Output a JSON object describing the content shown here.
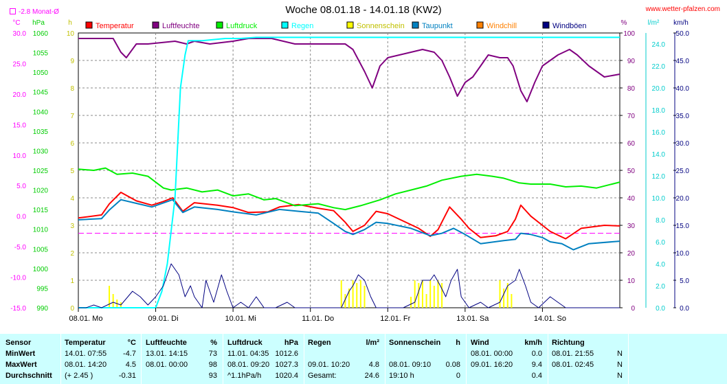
{
  "page": {
    "title": "Woche 08.01.18 - 14.01.18 (KW2)",
    "site": "www.wetter-pfalzen.com",
    "monat_label": "-2.8 Monat-Ø"
  },
  "colors": {
    "temperatur": "#ff0000",
    "luftfeuchte": "#800080",
    "luftdruck": "#00ee00",
    "regen": "#00ffff",
    "sonnenschein": "#ffff00",
    "taupunkt": "#0080c0",
    "windchill": "#ff8000",
    "windboeen": "#000080",
    "monat": "#ff00ff",
    "table_bg": "#ccffff"
  },
  "chart_data": {
    "type": "line",
    "title": "Woche 08.01.18 - 14.01.18 (KW2)",
    "x_range": [
      0,
      7
    ],
    "x_unit": "days from 08.01.",
    "x_ticks": [
      "08.01. Mo",
      "09.01. Di",
      "10.01. Mi",
      "11.01. Do",
      "12.01. Fr",
      "13.01. Sa",
      "14.01. So"
    ],
    "legend_placement": "top",
    "grid": true,
    "axes": {
      "temp": {
        "unit": "°C",
        "range": [
          -15,
          30
        ],
        "ticks": [
          "30.0",
          "25.0",
          "20.0",
          "15.0",
          "10.0",
          "5.0",
          "0.0",
          "-5.0",
          "-10.0",
          "-15.0"
        ]
      },
      "pressure": {
        "unit": "hPa",
        "range": [
          990,
          1060
        ],
        "ticks": [
          "1060",
          "1055",
          "1050",
          "1045",
          "1040",
          "1035",
          "1030",
          "1025",
          "1020",
          "1015",
          "1010",
          "1005",
          "1000",
          "995",
          "990"
        ]
      },
      "sun": {
        "unit": "h",
        "range": [
          0,
          10
        ],
        "ticks": [
          "10",
          "9",
          "8",
          "7",
          "6",
          "5",
          "4",
          "3",
          "2",
          "1",
          "0"
        ]
      },
      "humidity": {
        "unit": "%",
        "range": [
          0,
          100
        ],
        "ticks": [
          "100",
          "90",
          "80",
          "70",
          "60",
          "50",
          "40",
          "30",
          "20",
          "10",
          "0"
        ]
      },
      "rain": {
        "unit": "l/m²",
        "range": [
          0,
          25
        ],
        "ticks": [
          "24.0",
          "22.0",
          "20.0",
          "18.0",
          "16.0",
          "14.0",
          "12.0",
          "10.0",
          "8.0",
          "6.0",
          "4.0",
          "2.0",
          "0.0"
        ]
      },
      "wind": {
        "unit": "km/h",
        "range": [
          0,
          50
        ],
        "ticks": [
          "50.0",
          "45.0",
          "40.0",
          "35.0",
          "30.0",
          "25.0",
          "20.0",
          "15.0",
          "10.0",
          "5.0",
          "0.0"
        ]
      }
    },
    "monat_avg": -2.8,
    "series": [
      {
        "name": "Temperatur",
        "axis": "temp",
        "points": [
          [
            0,
            -0.3
          ],
          [
            0.3,
            0.2
          ],
          [
            0.4,
            2.0
          ],
          [
            0.55,
            3.9
          ],
          [
            0.75,
            2.5
          ],
          [
            0.95,
            1.8
          ],
          [
            1.1,
            2.4
          ],
          [
            1.22,
            3.0
          ],
          [
            1.35,
            0.8
          ],
          [
            1.5,
            2.2
          ],
          [
            1.8,
            1.8
          ],
          [
            2.0,
            1.4
          ],
          [
            2.2,
            0.6
          ],
          [
            2.45,
            0.7
          ],
          [
            2.6,
            1.5
          ],
          [
            2.85,
            1.9
          ],
          [
            3.1,
            1.3
          ],
          [
            3.3,
            0.9
          ],
          [
            3.45,
            -1.0
          ],
          [
            3.55,
            -2.5
          ],
          [
            3.7,
            -1.5
          ],
          [
            3.85,
            0.8
          ],
          [
            4.0,
            0.4
          ],
          [
            4.15,
            -0.5
          ],
          [
            4.4,
            -2.0
          ],
          [
            4.55,
            -3.3
          ],
          [
            4.65,
            -2.2
          ],
          [
            4.8,
            1.5
          ],
          [
            4.95,
            -0.5
          ],
          [
            5.05,
            -2.0
          ],
          [
            5.2,
            -3.5
          ],
          [
            5.4,
            -3.2
          ],
          [
            5.55,
            -2.5
          ],
          [
            5.65,
            -0.5
          ],
          [
            5.72,
            1.8
          ],
          [
            5.85,
            0.0
          ],
          [
            6.0,
            -1.5
          ],
          [
            6.1,
            -2.5
          ],
          [
            6.3,
            -3.7
          ],
          [
            6.5,
            -2.0
          ],
          [
            6.8,
            -1.5
          ],
          [
            7.0,
            -1.6
          ]
        ]
      },
      {
        "name": "Taupunkt",
        "axis": "temp",
        "points": [
          [
            0,
            -0.6
          ],
          [
            0.3,
            -0.4
          ],
          [
            0.4,
            1.0
          ],
          [
            0.55,
            2.7
          ],
          [
            0.75,
            2.1
          ],
          [
            0.95,
            1.5
          ],
          [
            1.22,
            2.7
          ],
          [
            1.35,
            0.6
          ],
          [
            1.5,
            1.5
          ],
          [
            1.8,
            1.1
          ],
          [
            2.0,
            0.7
          ],
          [
            2.3,
            0.2
          ],
          [
            2.6,
            1.1
          ],
          [
            2.85,
            0.8
          ],
          [
            3.1,
            0.5
          ],
          [
            3.3,
            -1.2
          ],
          [
            3.45,
            -2.5
          ],
          [
            3.55,
            -3.0
          ],
          [
            3.7,
            -2.2
          ],
          [
            3.85,
            -1.0
          ],
          [
            4.0,
            -1.2
          ],
          [
            4.3,
            -2.0
          ],
          [
            4.55,
            -3.2
          ],
          [
            4.7,
            -2.8
          ],
          [
            4.85,
            -2.0
          ],
          [
            5.0,
            -3.0
          ],
          [
            5.2,
            -4.5
          ],
          [
            5.5,
            -4.0
          ],
          [
            5.65,
            -3.8
          ],
          [
            5.72,
            -2.8
          ],
          [
            5.85,
            -3.0
          ],
          [
            6.0,
            -3.5
          ],
          [
            6.1,
            -4.2
          ],
          [
            6.25,
            -4.5
          ],
          [
            6.4,
            -5.5
          ],
          [
            6.6,
            -4.5
          ],
          [
            7.0,
            -4.1
          ]
        ]
      },
      {
        "name": "Luftdruck",
        "axis": "pressure",
        "points": [
          [
            0,
            1025.3
          ],
          [
            0.2,
            1025.0
          ],
          [
            0.35,
            1025.6
          ],
          [
            0.5,
            1024.0
          ],
          [
            0.7,
            1024.3
          ],
          [
            0.9,
            1023.5
          ],
          [
            1.1,
            1020.5
          ],
          [
            1.2,
            1020.0
          ],
          [
            1.4,
            1020.5
          ],
          [
            1.6,
            1019.5
          ],
          [
            1.8,
            1020.0
          ],
          [
            2.0,
            1018.5
          ],
          [
            2.2,
            1019.0
          ],
          [
            2.4,
            1017.5
          ],
          [
            2.55,
            1017.8
          ],
          [
            2.8,
            1016.0
          ],
          [
            3.1,
            1016.5
          ],
          [
            3.3,
            1015.5
          ],
          [
            3.45,
            1015.0
          ],
          [
            3.65,
            1016.0
          ],
          [
            3.9,
            1017.5
          ],
          [
            4.1,
            1019.0
          ],
          [
            4.3,
            1020.0
          ],
          [
            4.5,
            1021.0
          ],
          [
            4.7,
            1022.5
          ],
          [
            4.95,
            1023.5
          ],
          [
            5.15,
            1024.0
          ],
          [
            5.35,
            1023.5
          ],
          [
            5.5,
            1023.0
          ],
          [
            5.7,
            1021.8
          ],
          [
            5.85,
            1021.5
          ],
          [
            6.1,
            1021.5
          ],
          [
            6.3,
            1020.8
          ],
          [
            6.5,
            1021.0
          ],
          [
            6.7,
            1020.5
          ],
          [
            7.0,
            1022.0
          ]
        ]
      },
      {
        "name": "Luftfeuchte",
        "axis": "humidity",
        "points": [
          [
            0,
            98
          ],
          [
            0.45,
            98
          ],
          [
            0.55,
            93
          ],
          [
            0.62,
            91
          ],
          [
            0.75,
            96
          ],
          [
            0.9,
            96
          ],
          [
            1.25,
            97
          ],
          [
            1.4,
            96
          ],
          [
            1.5,
            97
          ],
          [
            1.7,
            96
          ],
          [
            2.0,
            97
          ],
          [
            2.2,
            98
          ],
          [
            2.5,
            98
          ],
          [
            2.65,
            97
          ],
          [
            2.8,
            96
          ],
          [
            3.2,
            96
          ],
          [
            3.45,
            96
          ],
          [
            3.55,
            94
          ],
          [
            3.7,
            86
          ],
          [
            3.8,
            80
          ],
          [
            3.9,
            88
          ],
          [
            4.0,
            91
          ],
          [
            4.15,
            92
          ],
          [
            4.3,
            93
          ],
          [
            4.45,
            94
          ],
          [
            4.6,
            93
          ],
          [
            4.7,
            90
          ],
          [
            4.8,
            84
          ],
          [
            4.9,
            77
          ],
          [
            5.0,
            82
          ],
          [
            5.1,
            84
          ],
          [
            5.2,
            88
          ],
          [
            5.3,
            92
          ],
          [
            5.45,
            91
          ],
          [
            5.55,
            91
          ],
          [
            5.62,
            88
          ],
          [
            5.72,
            79
          ],
          [
            5.8,
            75
          ],
          [
            5.9,
            82
          ],
          [
            6.0,
            88
          ],
          [
            6.2,
            92
          ],
          [
            6.35,
            94
          ],
          [
            6.45,
            92
          ],
          [
            6.6,
            88
          ],
          [
            6.8,
            84
          ],
          [
            7.0,
            85
          ]
        ]
      },
      {
        "name": "Regen",
        "axis": "rain",
        "points": [
          [
            0,
            0
          ],
          [
            1.0,
            0
          ],
          [
            1.08,
            1.5
          ],
          [
            1.15,
            4.0
          ],
          [
            1.25,
            10.0
          ],
          [
            1.32,
            20.0
          ],
          [
            1.38,
            23.0
          ],
          [
            1.42,
            24.3
          ],
          [
            1.6,
            24.3
          ],
          [
            1.9,
            24.5
          ],
          [
            2.1,
            24.5
          ],
          [
            2.3,
            24.6
          ],
          [
            7.0,
            24.6
          ]
        ]
      },
      {
        "name": "Windböen",
        "axis": "wind",
        "points": [
          [
            0,
            0
          ],
          [
            0.1,
            0
          ],
          [
            0.2,
            0.5
          ],
          [
            0.3,
            0
          ],
          [
            0.45,
            1
          ],
          [
            0.55,
            0.5
          ],
          [
            0.7,
            3
          ],
          [
            0.8,
            2
          ],
          [
            0.9,
            0.5
          ],
          [
            1.0,
            2
          ],
          [
            1.1,
            4
          ],
          [
            1.2,
            8
          ],
          [
            1.3,
            6
          ],
          [
            1.38,
            2
          ],
          [
            1.45,
            4
          ],
          [
            1.5,
            2
          ],
          [
            1.6,
            0
          ],
          [
            1.65,
            5
          ],
          [
            1.75,
            1
          ],
          [
            1.85,
            6
          ],
          [
            1.92,
            3
          ],
          [
            2.0,
            0
          ],
          [
            2.1,
            1
          ],
          [
            2.2,
            0
          ],
          [
            2.3,
            2
          ],
          [
            2.4,
            0
          ],
          [
            2.55,
            0
          ],
          [
            2.7,
            1
          ],
          [
            2.8,
            0
          ],
          [
            3.4,
            0
          ],
          [
            3.5,
            3
          ],
          [
            3.55,
            4
          ],
          [
            3.62,
            6
          ],
          [
            3.7,
            5
          ],
          [
            3.78,
            2
          ],
          [
            3.85,
            0
          ],
          [
            4.0,
            0
          ],
          [
            4.2,
            0
          ],
          [
            4.35,
            1
          ],
          [
            4.45,
            5
          ],
          [
            4.55,
            5
          ],
          [
            4.6,
            6
          ],
          [
            4.68,
            4
          ],
          [
            4.75,
            2
          ],
          [
            4.82,
            5
          ],
          [
            4.9,
            7
          ],
          [
            4.95,
            2
          ],
          [
            5.05,
            0
          ],
          [
            5.2,
            1
          ],
          [
            5.3,
            0
          ],
          [
            5.45,
            1
          ],
          [
            5.55,
            4
          ],
          [
            5.65,
            5
          ],
          [
            5.7,
            7
          ],
          [
            5.78,
            4
          ],
          [
            5.85,
            1
          ],
          [
            5.95,
            0
          ],
          [
            6.1,
            2
          ],
          [
            6.2,
            1
          ],
          [
            6.3,
            0
          ],
          [
            7.0,
            0
          ]
        ]
      }
    ],
    "sunshine": [
      [
        0.4,
        0.8
      ],
      [
        0.45,
        0.5
      ],
      [
        0.5,
        0.3
      ],
      [
        0.55,
        0.2
      ],
      [
        3.4,
        1.0
      ],
      [
        3.45,
        0.5
      ],
      [
        3.5,
        0.7
      ],
      [
        3.55,
        1.0
      ],
      [
        3.6,
        0.9
      ],
      [
        3.65,
        1.0
      ],
      [
        3.7,
        0.8
      ],
      [
        4.3,
        0.4
      ],
      [
        4.35,
        1.0
      ],
      [
        4.4,
        0.9
      ],
      [
        4.45,
        1.0
      ],
      [
        4.5,
        0.5
      ],
      [
        4.55,
        1.0
      ],
      [
        4.6,
        0.8
      ],
      [
        4.65,
        1.0
      ],
      [
        4.7,
        0.9
      ],
      [
        5.45,
        1.0
      ],
      [
        5.5,
        0.7
      ],
      [
        5.55,
        0.9
      ],
      [
        5.6,
        0.5
      ]
    ]
  },
  "legend": [
    {
      "name": "Temperatur",
      "color": "#ff0000"
    },
    {
      "name": "Luftfeuchte",
      "color": "#800080"
    },
    {
      "name": "Luftdruck",
      "color": "#00ee00"
    },
    {
      "name": "Regen",
      "color": "#00ffff"
    },
    {
      "name": "Sonnenschein",
      "color": "#ffff00"
    },
    {
      "name": "Taupunkt",
      "color": "#0080c0"
    },
    {
      "name": "Windchill",
      "color": "#ff8000"
    },
    {
      "name": "Windböen",
      "color": "#000080"
    }
  ],
  "table": {
    "rows": [
      [
        "Sensor",
        "Temperatur",
        "°C",
        "Luftfeuchte",
        "%",
        "Luftdruck",
        "hPa",
        "Regen",
        "l/m²",
        "Sonnenschein",
        "h",
        "Wind",
        "km/h",
        "Richtung",
        ""
      ],
      [
        "MinWert",
        "14.01. 07:55",
        "-4.7",
        "13.01. 14:15",
        "73",
        "11.01. 04:35",
        "1012.6",
        "",
        "",
        "",
        "",
        "08.01. 00:00",
        "0.0",
        "08.01. 21:55",
        "N"
      ],
      [
        "MaxWert",
        "08.01. 14:20",
        "4.5",
        "08.01. 00:00",
        "98",
        "08.01. 09:20",
        "1027.3",
        "09.01. 10:20",
        "4.8",
        "08.01. 09:10",
        "0.08",
        "09.01. 16:20",
        "9.4",
        "08.01. 02:45",
        "N"
      ],
      [
        "Durchschnitt",
        "(+ 2.45 )",
        "-0.31",
        "",
        "93",
        "^1.1hPa/h",
        "1020.4",
        "Gesamt:",
        "24.6",
        "19:10 h",
        "0",
        "",
        "0.4",
        "",
        "N"
      ]
    ]
  }
}
